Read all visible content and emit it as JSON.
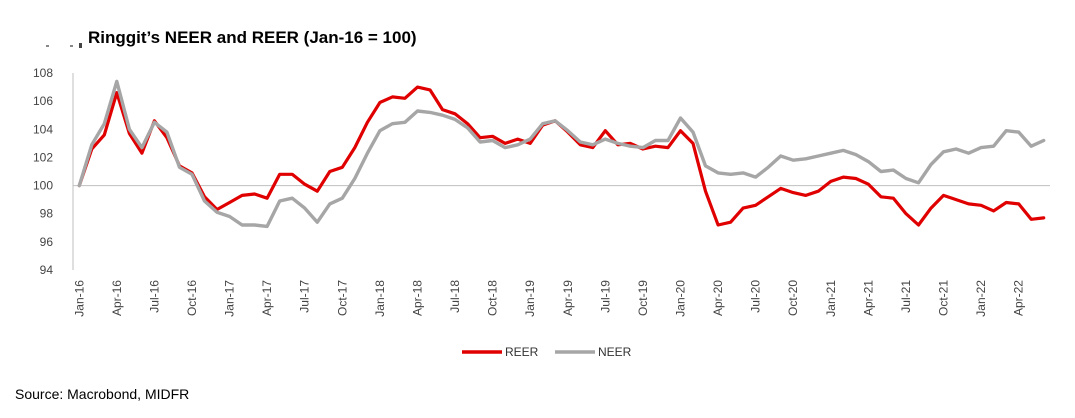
{
  "title": "Ringgit’s NEER and REER (Jan-16 = 100)",
  "source": "Source: Macrobond, MIDFR",
  "colors": {
    "REER": "#e00000",
    "NEER": "#a6a6a6",
    "axis": "#bfbfbf"
  },
  "chart_data": {
    "type": "line",
    "title": "Ringgit’s NEER and REER (Jan-16 = 100)",
    "xlabel": "",
    "ylabel": "",
    "ylim": [
      94,
      108
    ],
    "yticks": [
      94,
      96,
      98,
      100,
      102,
      104,
      106,
      108
    ],
    "reference_line": 100,
    "grid": false,
    "legend_position": "bottom-center",
    "x_tick_labels": [
      "Jan-16",
      "Apr-16",
      "Jul-16",
      "Oct-16",
      "Jan-17",
      "Apr-17",
      "Jul-17",
      "Oct-17",
      "Jan-18",
      "Apr-18",
      "Jul-18",
      "Oct-18",
      "Jan-19",
      "Apr-19",
      "Jul-19",
      "Oct-19",
      "Jan-20",
      "Apr-20",
      "Jul-20",
      "Oct-20",
      "Jan-21",
      "Apr-21",
      "Jul-21",
      "Oct-21",
      "Jan-22",
      "Apr-22"
    ],
    "x": [
      "Jan-16",
      "Feb-16",
      "Mar-16",
      "Apr-16",
      "May-16",
      "Jun-16",
      "Jul-16",
      "Aug-16",
      "Sep-16",
      "Oct-16",
      "Nov-16",
      "Dec-16",
      "Jan-17",
      "Feb-17",
      "Mar-17",
      "Apr-17",
      "May-17",
      "Jun-17",
      "Jul-17",
      "Aug-17",
      "Sep-17",
      "Oct-17",
      "Nov-17",
      "Dec-17",
      "Jan-18",
      "Feb-18",
      "Mar-18",
      "Apr-18",
      "May-18",
      "Jun-18",
      "Jul-18",
      "Aug-18",
      "Sep-18",
      "Oct-18",
      "Nov-18",
      "Dec-18",
      "Jan-19",
      "Feb-19",
      "Mar-19",
      "Apr-19",
      "May-19",
      "Jun-19",
      "Jul-19",
      "Aug-19",
      "Sep-19",
      "Oct-19",
      "Nov-19",
      "Dec-19",
      "Jan-20",
      "Feb-20",
      "Mar-20",
      "Apr-20",
      "May-20",
      "Jun-20",
      "Jul-20",
      "Aug-20",
      "Sep-20",
      "Oct-20",
      "Nov-20",
      "Dec-20",
      "Jan-21",
      "Feb-21",
      "Mar-21",
      "Apr-21",
      "May-21",
      "Jun-21",
      "Jul-21",
      "Aug-21",
      "Sep-21",
      "Oct-21",
      "Nov-21",
      "Dec-21",
      "Jan-22",
      "Feb-22",
      "Mar-22",
      "Apr-22",
      "May-22",
      "Jun-22"
    ],
    "series": [
      {
        "name": "REER",
        "values": [
          100.0,
          102.6,
          103.6,
          106.6,
          103.7,
          102.3,
          104.6,
          103.4,
          101.4,
          100.9,
          99.2,
          98.3,
          98.8,
          99.3,
          99.4,
          99.1,
          100.8,
          100.8,
          100.1,
          99.6,
          101.0,
          101.3,
          102.7,
          104.5,
          105.9,
          106.3,
          106.2,
          107.0,
          106.8,
          105.4,
          105.1,
          104.4,
          103.4,
          103.5,
          103.0,
          103.3,
          103.0,
          104.3,
          104.6,
          103.8,
          102.9,
          102.7,
          103.9,
          102.9,
          103.0,
          102.6,
          102.8,
          102.7,
          103.9,
          103.0,
          99.6,
          97.2,
          97.4,
          98.4,
          98.6,
          99.2,
          99.8,
          99.5,
          99.3,
          99.6,
          100.3,
          100.6,
          100.5,
          100.1,
          99.2,
          99.1,
          98.0,
          97.2,
          98.4,
          99.3,
          99.0,
          98.7,
          98.6,
          98.2,
          98.8,
          98.7,
          97.6,
          97.7
        ]
      },
      {
        "name": "NEER",
        "values": [
          100.0,
          102.9,
          104.4,
          107.4,
          104.0,
          102.7,
          104.5,
          103.8,
          101.3,
          100.8,
          98.9,
          98.1,
          97.8,
          97.2,
          97.2,
          97.1,
          98.9,
          99.1,
          98.4,
          97.4,
          98.7,
          99.1,
          100.5,
          102.3,
          103.9,
          104.4,
          104.5,
          105.3,
          105.2,
          105.0,
          104.7,
          104.1,
          103.1,
          103.2,
          102.7,
          102.9,
          103.3,
          104.4,
          104.6,
          103.9,
          103.1,
          102.9,
          103.3,
          103.0,
          102.8,
          102.7,
          103.2,
          103.2,
          104.8,
          103.8,
          101.4,
          100.9,
          100.8,
          100.9,
          100.6,
          101.3,
          102.1,
          101.8,
          101.9,
          102.1,
          102.3,
          102.5,
          102.2,
          101.7,
          101.0,
          101.1,
          100.5,
          100.2,
          101.5,
          102.4,
          102.6,
          102.3,
          102.7,
          102.8,
          103.9,
          103.8,
          102.8,
          103.2
        ]
      }
    ]
  }
}
